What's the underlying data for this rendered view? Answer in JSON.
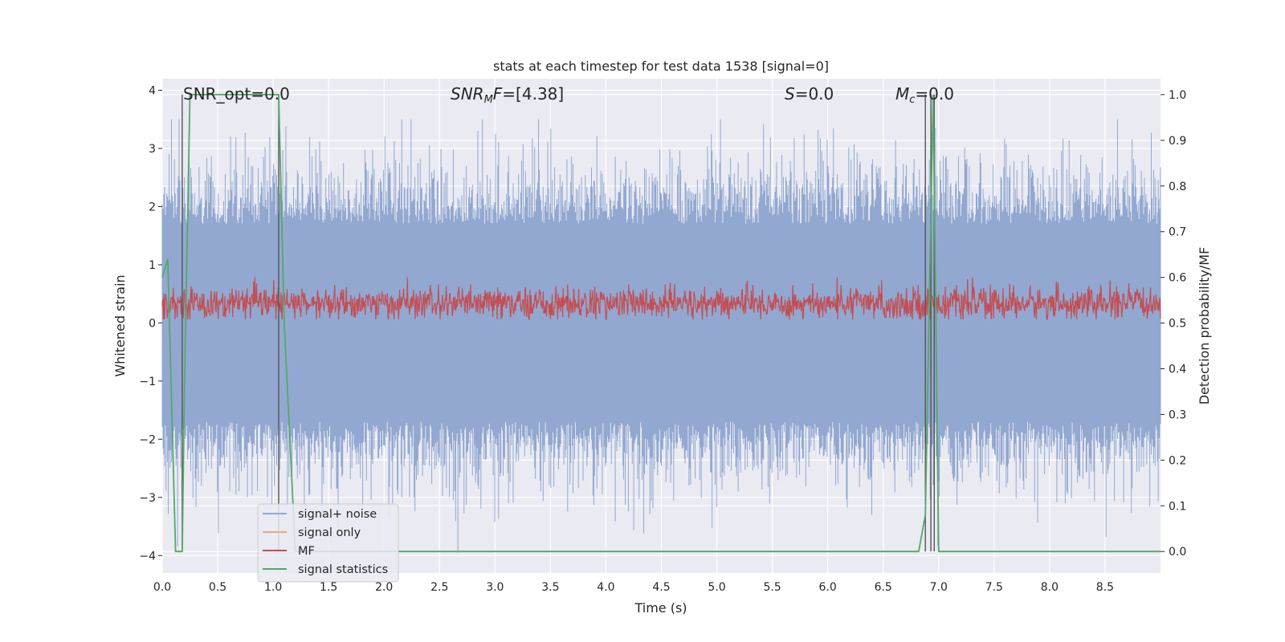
{
  "chart_data": {
    "type": "line",
    "title": "stats at each timestep for test data 1538 [signal=0]",
    "xlabel": "Time (s)",
    "ylabel": "Whitened strain",
    "ylabel_right": "Detection probability/MF",
    "xlim": [
      0.0,
      9.0
    ],
    "ylim": [
      -4.3,
      4.2
    ],
    "ylim_right": [
      -0.047,
      1.035
    ],
    "x_ticks": [
      "0.0",
      "0.5",
      "1.0",
      "1.5",
      "2.0",
      "2.5",
      "3.0",
      "3.5",
      "4.0",
      "4.5",
      "5.0",
      "5.5",
      "6.0",
      "6.5",
      "7.0",
      "7.5",
      "8.0",
      "8.5"
    ],
    "y_ticks": [
      "−4",
      "−3",
      "−2",
      "−1",
      "0",
      "1",
      "2",
      "3",
      "4"
    ],
    "y_ticks_right": [
      "0.0",
      "0.1",
      "0.2",
      "0.3",
      "0.4",
      "0.5",
      "0.6",
      "0.7",
      "0.8",
      "0.9",
      "1.0"
    ],
    "grid": true,
    "legend_position": "lower-left",
    "annotations": {
      "snr_opt": "SNR_opt=0.0",
      "snr_mf_a": "SNR",
      "snr_mf_sub": "M",
      "snr_mf_b": "F=[4.38]",
      "s_a": "S",
      "s_b": "=0.0",
      "mc_a": "M",
      "mc_sub": "c",
      "mc_b": "=0.0"
    },
    "series": [
      {
        "name": "signal+ noise",
        "color": "#92a8d1",
        "description": "whitened noise, amplitude about ±1.7 with spikes to about ±3.5",
        "envelope": [
          -1.7,
          1.7
        ]
      },
      {
        "name": "signal only",
        "color": "#e8a88a",
        "values": []
      },
      {
        "name": "MF",
        "color": "#c44e52",
        "axis": "right",
        "range": [
          0.51,
          0.575
        ]
      },
      {
        "name": "signal statistics",
        "color": "#55a868",
        "axis": "right",
        "x": [
          0.0,
          0.05,
          0.12,
          0.18,
          0.2,
          0.25,
          1.05,
          1.1,
          1.2,
          6.82,
          6.88,
          6.95,
          7.0,
          9.0
        ],
        "values": [
          0.6,
          0.64,
          0.0,
          0.0,
          0.35,
          1.0,
          1.0,
          0.5,
          0.0,
          0.0,
          0.08,
          1.0,
          0.0,
          0.0
        ]
      }
    ],
    "vertical_markers": [
      0.18,
      1.05,
      6.88,
      6.93,
      6.96
    ]
  },
  "legend": {
    "items": [
      {
        "label": "signal+ noise",
        "color": "#92a8d1"
      },
      {
        "label": "signal only",
        "color": "#e8a88a"
      },
      {
        "label": "MF",
        "color": "#c44e52"
      },
      {
        "label": "signal statistics",
        "color": "#55a868"
      }
    ]
  }
}
